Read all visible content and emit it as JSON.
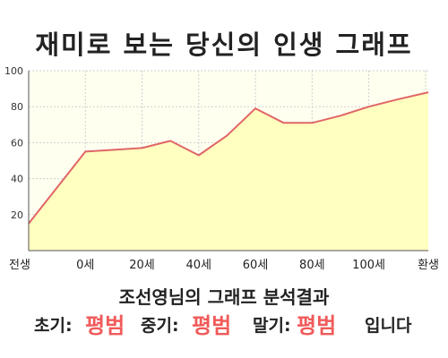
{
  "title": "재미로 보는 당신의 인생 그래프",
  "chart_data": {
    "type": "area",
    "title": "재미로 보는 당신의 인생 그래프",
    "x_ticks": [
      {
        "label": "전생",
        "x": -20
      },
      {
        "label": "0세",
        "x": 0
      },
      {
        "label": "20세",
        "x": 20
      },
      {
        "label": "40세",
        "x": 40
      },
      {
        "label": "60세",
        "x": 60
      },
      {
        "label": "80세",
        "x": 80
      },
      {
        "label": "100세",
        "x": 100
      },
      {
        "label": "환생",
        "x": 120
      }
    ],
    "y_ticks": [
      20,
      40,
      60,
      80,
      100
    ],
    "xlim": [
      -20,
      121
    ],
    "ylim": [
      0,
      100
    ],
    "series": [
      {
        "x": [
          -20,
          0,
          10,
          20,
          30,
          40,
          50,
          60,
          70,
          80,
          90,
          100,
          110,
          121
        ],
        "values": [
          15,
          55,
          56,
          57,
          61,
          53,
          64,
          79,
          71,
          71,
          75,
          80,
          84,
          88
        ]
      }
    ],
    "grid": true,
    "colors": {
      "line": "#e06666",
      "fill": "#ffffc0",
      "background": "#fffff0",
      "grid": "#cfcfcf"
    }
  },
  "result": {
    "heading": "조선영님의 그래프 분석결과",
    "early_label": "초기:",
    "early_value": "평범",
    "middle_label": "중기:",
    "middle_value": "평범",
    "late_label": "말기:",
    "late_value": "평범",
    "suffix": "입니다"
  }
}
